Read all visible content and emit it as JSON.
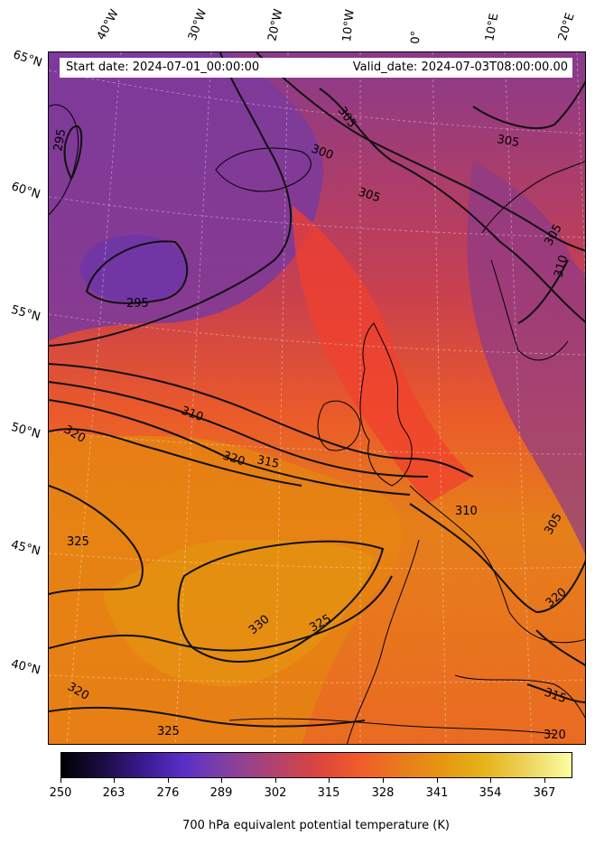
{
  "header": {
    "start_date": "Start date: 2024-07-01_00:00:00",
    "valid_date": "Valid_date: 2024-07-03T08:00:00.00"
  },
  "longitude_labels": [
    "40°W",
    "30°W",
    "20°W",
    "10°W",
    "0°",
    "10°E",
    "20°E"
  ],
  "latitude_labels": [
    "65°N",
    "60°N",
    "55°N",
    "50°N",
    "45°N",
    "40°N"
  ],
  "contour_labels": [
    "305",
    "300",
    "305",
    "305",
    "295",
    "295",
    "305",
    "310",
    "310",
    "320",
    "315",
    "320",
    "325",
    "310",
    "305",
    "330",
    "325",
    "320",
    "320",
    "315",
    "325",
    "320"
  ],
  "colorbar": {
    "ticks": [
      "250",
      "263",
      "276",
      "289",
      "302",
      "315",
      "328",
      "341",
      "354",
      "367"
    ],
    "title": "700 hPa equivalent potential temperature (K)",
    "range": [
      250,
      372
    ],
    "colormap": "CMRmap"
  },
  "colors": {
    "cool_purple": "#7a3a9e",
    "mid_red": "#e8433f",
    "warm_orange": "#e98a12",
    "contour_line": "#111111"
  }
}
